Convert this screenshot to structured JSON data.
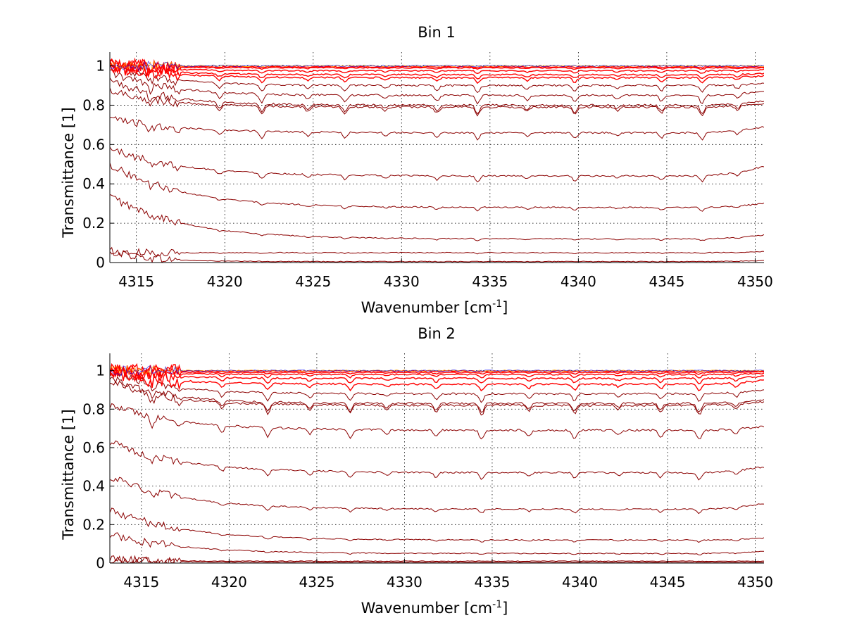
{
  "figure": {
    "background": "#ffffff"
  },
  "chart_data": [
    {
      "type": "line",
      "title": "Bin 1",
      "xlabel": "Wavenumber [cm",
      "xlabel_sup": "-1",
      "xlabel_close": "]",
      "ylabel": "Transmittance [1]",
      "xlim": [
        4313.5,
        4350.5
      ],
      "ylim": [
        0,
        1.07
      ],
      "xticks": [
        4315,
        4320,
        4325,
        4330,
        4335,
        4340,
        4345,
        4350
      ],
      "yticks": [
        0,
        0.2,
        0.4,
        0.6,
        0.8,
        1
      ],
      "ytick_labels": [
        "0",
        "0.2",
        "0.4",
        "0.6",
        "0.8",
        "1"
      ],
      "grid": true,
      "grid_style": "dotted",
      "series_colors": [
        "#8b0000",
        "#ff0000",
        "#ffa500",
        "#0000ff"
      ],
      "absorption_lines": [
        4315.8,
        4317.3,
        4319.7,
        4322.1,
        4324.7,
        4326.8,
        4329.1,
        4332.0,
        4334.3,
        4337.1,
        4339.8,
        4342.2,
        4344.7,
        4347.0,
        4349.0
      ],
      "series": [
        {
          "start": 0.06,
          "level": 0.005,
          "end": 0.01,
          "decay": 2.0,
          "dip": 0.0
        },
        {
          "start": 0.05,
          "level": 0.05,
          "end": 0.055,
          "decay": 4.0,
          "dip": 0.003
        },
        {
          "start": 0.34,
          "level": 0.12,
          "end": 0.14,
          "decay": 4.0,
          "dip": 0.006
        },
        {
          "start": 0.5,
          "level": 0.28,
          "end": 0.3,
          "decay": 4.0,
          "dip": 0.012
        },
        {
          "start": 0.58,
          "level": 0.44,
          "end": 0.49,
          "decay": 4.0,
          "dip": 0.02
        },
        {
          "start": 0.73,
          "level": 0.66,
          "end": 0.69,
          "decay": 4.0,
          "dip": 0.025
        },
        {
          "start": 0.88,
          "level": 0.79,
          "end": 0.81,
          "decay": 3.0,
          "dip": 0.03
        },
        {
          "start": 0.93,
          "level": 0.8,
          "end": 0.82,
          "decay": 3.0,
          "dip": 0.03
        },
        {
          "start": 0.97,
          "level": 0.85,
          "end": 0.87,
          "decay": 3.0,
          "dip": 0.03
        },
        {
          "start": 1.0,
          "level": 0.9,
          "end": 0.91,
          "decay": 3.0,
          "dip": 0.025
        },
        {
          "start": 1.0,
          "level": 0.94,
          "end": 0.95,
          "decay": 3.0,
          "dip": 0.02
        },
        {
          "start": 1.0,
          "level": 0.955,
          "end": 0.96,
          "decay": 3.0,
          "dip": 0.015
        },
        {
          "start": 1.0,
          "level": 0.975,
          "end": 0.98,
          "decay": 3.0,
          "dip": 0.01
        },
        {
          "start": 1.0,
          "level": 0.99,
          "end": 0.99,
          "decay": 3.0,
          "dip": 0.005
        },
        {
          "start": 1.0,
          "level": 0.995,
          "end": 0.995,
          "decay": 3.0,
          "dip": 0.003
        }
      ]
    },
    {
      "type": "line",
      "title": "Bin 2",
      "xlabel": "Wavenumber [cm",
      "xlabel_sup": "-1",
      "xlabel_close": "]",
      "ylabel": "Transmittance [1]",
      "xlim": [
        4313.2,
        4350.5
      ],
      "ylim": [
        0,
        1.09
      ],
      "xticks": [
        4315,
        4320,
        4325,
        4330,
        4335,
        4340,
        4345,
        4350
      ],
      "yticks": [
        0,
        0.2,
        0.4,
        0.6,
        0.8,
        1
      ],
      "ytick_labels": [
        "0",
        "0.2",
        "0.4",
        "0.6",
        "0.8",
        "1"
      ],
      "grid": true,
      "grid_style": "dotted",
      "series_colors": [
        "#8b0000",
        "#ff0000",
        "#ffa500",
        "#0000ff"
      ],
      "absorption_lines": [
        4315.6,
        4317.2,
        4319.6,
        4322.2,
        4324.6,
        4326.9,
        4329.0,
        4331.8,
        4334.4,
        4337.1,
        4339.7,
        4342.2,
        4344.6,
        4346.8,
        4348.9
      ],
      "series": [
        {
          "start": 0.03,
          "level": 0.005,
          "end": 0.005,
          "decay": 2.0,
          "dip": 0.0
        },
        {
          "start": 0.02,
          "level": 0.01,
          "end": 0.01,
          "decay": 2.0,
          "dip": 0.0
        },
        {
          "start": 0.15,
          "level": 0.05,
          "end": 0.06,
          "decay": 4.0,
          "dip": 0.005
        },
        {
          "start": 0.28,
          "level": 0.12,
          "end": 0.13,
          "decay": 4.0,
          "dip": 0.008
        },
        {
          "start": 0.45,
          "level": 0.28,
          "end": 0.31,
          "decay": 4.0,
          "dip": 0.015
        },
        {
          "start": 0.63,
          "level": 0.47,
          "end": 0.5,
          "decay": 4.0,
          "dip": 0.025
        },
        {
          "start": 0.82,
          "level": 0.69,
          "end": 0.71,
          "decay": 4.0,
          "dip": 0.035
        },
        {
          "start": 0.95,
          "level": 0.82,
          "end": 0.84,
          "decay": 3.0,
          "dip": 0.035
        },
        {
          "start": 0.97,
          "level": 0.83,
          "end": 0.85,
          "decay": 3.0,
          "dip": 0.035
        },
        {
          "start": 1.0,
          "level": 0.88,
          "end": 0.9,
          "decay": 3.0,
          "dip": 0.03
        },
        {
          "start": 1.0,
          "level": 0.93,
          "end": 0.95,
          "decay": 3.0,
          "dip": 0.025
        },
        {
          "start": 1.0,
          "level": 0.96,
          "end": 0.97,
          "decay": 3.0,
          "dip": 0.02
        },
        {
          "start": 1.0,
          "level": 0.98,
          "end": 0.985,
          "decay": 3.0,
          "dip": 0.012
        },
        {
          "start": 1.0,
          "level": 0.99,
          "end": 0.995,
          "decay": 3.0,
          "dip": 0.006
        },
        {
          "start": 1.0,
          "level": 0.998,
          "end": 0.998,
          "decay": 3.0,
          "dip": 0.003
        }
      ]
    }
  ]
}
